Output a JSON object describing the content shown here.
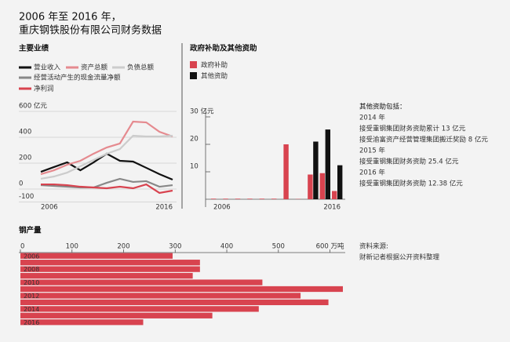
{
  "header": {
    "title": [
      "2006 年至 2016 年，",
      "重庆钢铁股份有限公司财务数据"
    ]
  },
  "notes": {
    "heading": "其他资助包括：",
    "lines": [
      "2014 年",
      "接受重钢集团财务资助累计 13 亿元",
      "接受渝富资产经营管理集团搬迁奖励 8 亿元",
      "2015 年",
      "接受重钢集团财务资助 25.4 亿元",
      "2016 年",
      "接受重钢集团财务资助 12.38 亿元"
    ]
  },
  "source": [
    "资料来源:",
    "财新记者根据公开资料整理"
  ],
  "chart_data": [
    {
      "type": "line",
      "title": "主要业绩",
      "categories": [
        "2006",
        null,
        null,
        null,
        null,
        null,
        null,
        null,
        null,
        null,
        "2016"
      ],
      "series": [
        {
          "name": "营业收入",
          "color": "#111111",
          "values": [
            133,
            170,
            206,
            145,
            206,
            273,
            218,
            212,
            164,
            115,
            73
          ]
        },
        {
          "name": "资产总额",
          "color": "#e58a8f",
          "values": [
            115,
            145,
            188,
            218,
            273,
            321,
            352,
            521,
            515,
            442,
            406
          ]
        },
        {
          "name": "负债总额",
          "color": "#cccccc",
          "values": [
            79,
            97,
            127,
            176,
            224,
            273,
            309,
            412,
            406,
            406,
            412
          ]
        },
        {
          "name": "经营活动产生的现金流量净额",
          "color": "#888888",
          "values": [
            30,
            24,
            18,
            12,
            12,
            48,
            79,
            55,
            61,
            18,
            30
          ]
        },
        {
          "name": "净利润",
          "color": "#d8434f",
          "values": [
            36,
            36,
            30,
            18,
            12,
            6,
            18,
            6,
            36,
            -30,
            -12
          ]
        }
      ],
      "ylim": [
        -100,
        600
      ],
      "yticks": [
        {
          "value": 600,
          "label": "600 亿元"
        },
        400,
        200,
        0,
        -100
      ],
      "grid": true
    },
    {
      "type": "bar",
      "title": "政府补助及其他资助",
      "categories": [
        "2006",
        null,
        null,
        null,
        null,
        null,
        null,
        null,
        null,
        null,
        "2016"
      ],
      "series": [
        {
          "name": "政府补助",
          "color": "#d8434f",
          "values": [
            0.2,
            0.2,
            0.2,
            0.2,
            0.2,
            0.2,
            20,
            0.1,
            9,
            9.5,
            3
          ]
        },
        {
          "name": "其他资助",
          "color": "#111111",
          "values": [
            0,
            0,
            0,
            0,
            0,
            0,
            0,
            0,
            21,
            25.4,
            12.38
          ]
        }
      ],
      "ylim": [
        0,
        30
      ],
      "yticks": [
        {
          "value": 30,
          "label": "30 亿元"
        },
        20,
        10
      ]
    },
    {
      "type": "barh",
      "title": "钢产量",
      "categories": [
        "2006",
        null,
        "2008",
        null,
        "2010",
        null,
        "2012",
        null,
        "2014",
        null,
        "2016"
      ],
      "values": [
        295,
        348,
        348,
        334,
        469,
        625,
        543,
        597,
        462,
        372,
        238
      ],
      "color": "#d8434f",
      "xlim": [
        0,
        625
      ],
      "xticks": [
        0,
        100,
        200,
        300,
        400,
        500,
        {
          "value": 600,
          "label": "600 万吨"
        }
      ]
    }
  ]
}
